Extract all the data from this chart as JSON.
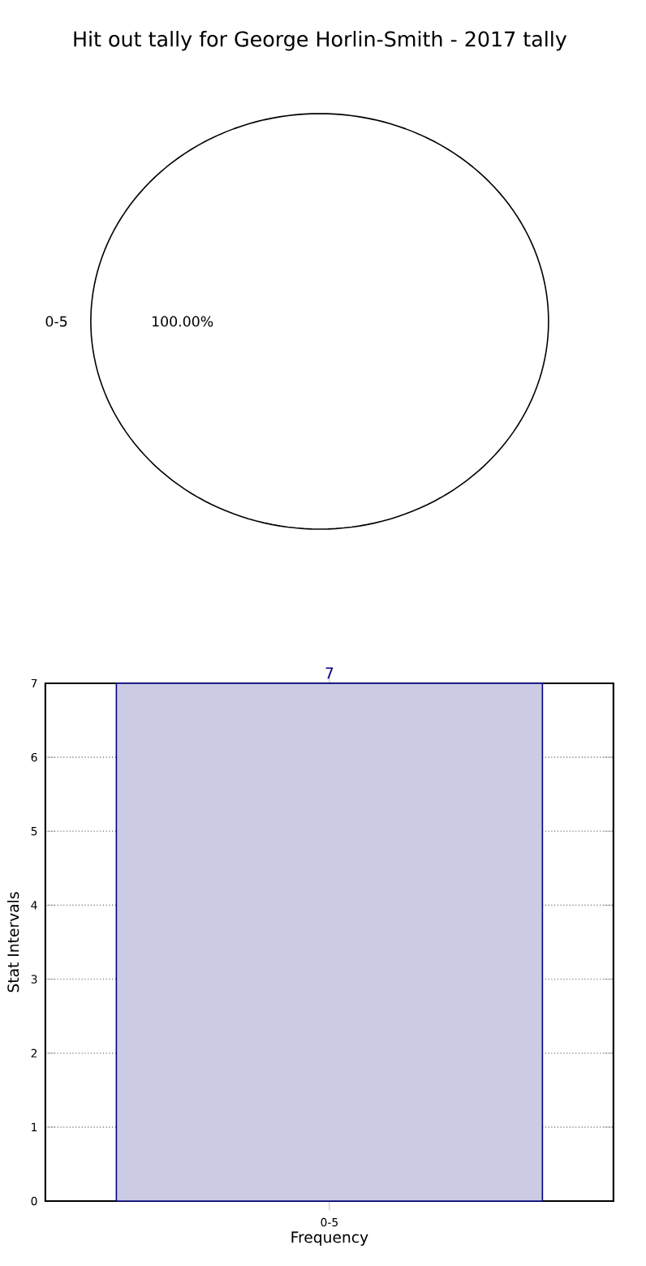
{
  "chart_data": [
    {
      "type": "pie",
      "title": "Hit out tally for George Horlin-Smith - 2017 tally",
      "categories": [
        "0-5"
      ],
      "values": [
        100
      ],
      "colors": [
        "#ffffff"
      ],
      "value_labels": [
        "100.00%"
      ]
    },
    {
      "type": "bar",
      "categories": [
        "0-5"
      ],
      "values": [
        7
      ],
      "color": "#cbcce4",
      "xlabel": "Frequency",
      "ylabel": "Stat Intervals",
      "ylim": [
        0,
        7
      ],
      "yticks": [
        0,
        1,
        2,
        3,
        4,
        5,
        6,
        7
      ],
      "grid": true,
      "data_labels": true
    }
  ]
}
